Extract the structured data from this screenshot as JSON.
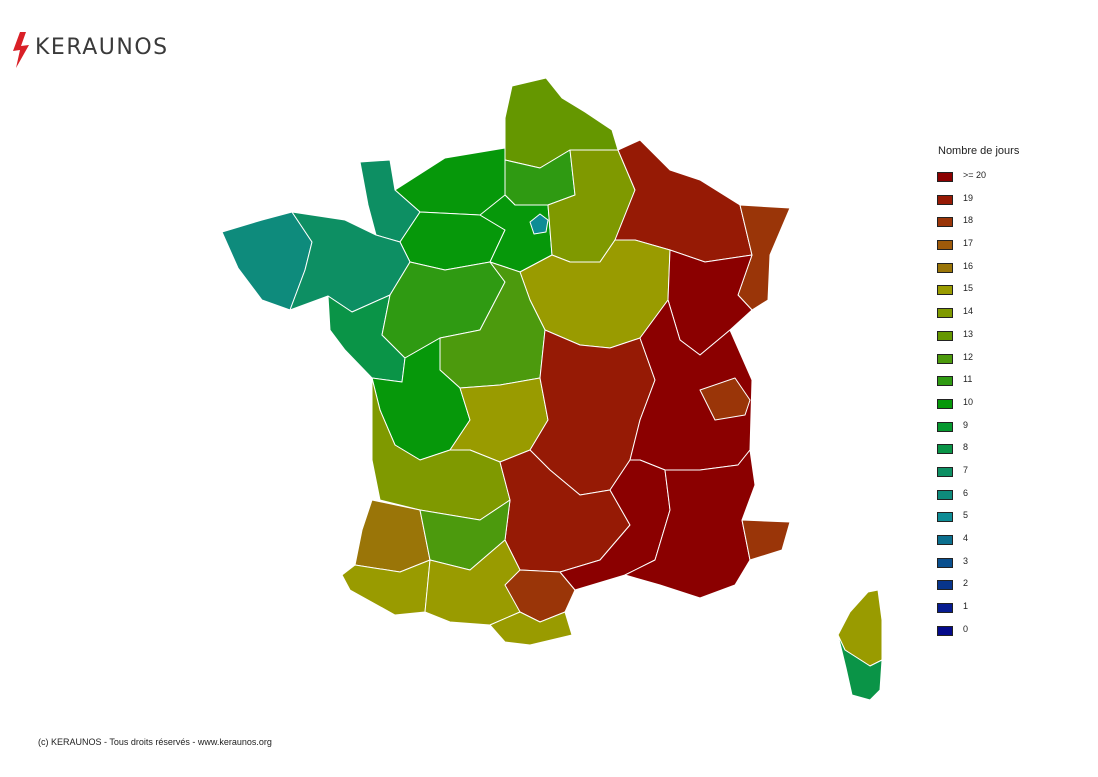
{
  "brand": {
    "name": "KERAUNOS",
    "icon": "lightning-bolt-icon",
    "accent_color": "#d92027"
  },
  "legend": {
    "title": "Nombre de jours",
    "items": [
      {
        "label": ">= 20",
        "color": "#8b0000"
      },
      {
        "label": "19",
        "color": "#961a05"
      },
      {
        "label": "18",
        "color": "#9a3508"
      },
      {
        "label": "17",
        "color": "#9e5a0a"
      },
      {
        "label": "16",
        "color": "#9a7508"
      },
      {
        "label": "15",
        "color": "#999b00"
      },
      {
        "label": "14",
        "color": "#7f9900"
      },
      {
        "label": "13",
        "color": "#659700"
      },
      {
        "label": "12",
        "color": "#4c9a0d"
      },
      {
        "label": "11",
        "color": "#2f9a12"
      },
      {
        "label": "10",
        "color": "#06980a"
      },
      {
        "label": "9",
        "color": "#06982f"
      },
      {
        "label": "8",
        "color": "#0a9447"
      },
      {
        "label": "7",
        "color": "#0d8f63"
      },
      {
        "label": "6",
        "color": "#0e8b7c"
      },
      {
        "label": "5",
        "color": "#0e8c95"
      },
      {
        "label": "4",
        "color": "#0b6f8e"
      },
      {
        "label": "3",
        "color": "#094f8e"
      },
      {
        "label": "2",
        "color": "#08358c"
      },
      {
        "label": "1",
        "color": "#071c90"
      },
      {
        "label": "0",
        "color": "#040a8a"
      }
    ]
  },
  "map_regions": [
    {
      "name": "nord-pas-de-calais",
      "color": "#659700"
    },
    {
      "name": "picardie",
      "color": "#2f9a12"
    },
    {
      "name": "haute-normandie",
      "color": "#06980a"
    },
    {
      "name": "cotentin",
      "color": "#0d8f63"
    },
    {
      "name": "basse-normandie",
      "color": "#06980a"
    },
    {
      "name": "bretagne-finistere",
      "color": "#0e8b7c"
    },
    {
      "name": "bretagne-est",
      "color": "#0d8f63"
    },
    {
      "name": "loire-atlantique",
      "color": "#0a9447"
    },
    {
      "name": "pays-de-loire",
      "color": "#2f9a12"
    },
    {
      "name": "ile-de-france",
      "color": "#06980a"
    },
    {
      "name": "paris",
      "color": "#0e8c95"
    },
    {
      "name": "champagne-ardenne",
      "color": "#7f9900"
    },
    {
      "name": "lorraine",
      "color": "#961a05"
    },
    {
      "name": "alsace",
      "color": "#9a3508"
    },
    {
      "name": "bourgogne",
      "color": "#999b00"
    },
    {
      "name": "centre",
      "color": "#4c9a0d"
    },
    {
      "name": "franche-comte",
      "color": "#8b0000"
    },
    {
      "name": "poitou-charentes",
      "color": "#06980a"
    },
    {
      "name": "limousin",
      "color": "#999b00"
    },
    {
      "name": "auvergne",
      "color": "#961a05"
    },
    {
      "name": "rhone-alpes",
      "color": "#8b0000"
    },
    {
      "name": "savoie",
      "color": "#9a3508"
    },
    {
      "name": "aquitaine",
      "color": "#7f9900"
    },
    {
      "name": "landes",
      "color": "#9a7508"
    },
    {
      "name": "pyrenees-atlantiques",
      "color": "#999b00"
    },
    {
      "name": "midi-pyrenees",
      "color": "#961a05"
    },
    {
      "name": "gers",
      "color": "#4c9a0d"
    },
    {
      "name": "haute-garonne",
      "color": "#999b00"
    },
    {
      "name": "ariege",
      "color": "#9a3508"
    },
    {
      "name": "pyrenees-orientales",
      "color": "#999b00"
    },
    {
      "name": "languedoc",
      "color": "#8b0000"
    },
    {
      "name": "provence",
      "color": "#8b0000"
    },
    {
      "name": "alpes-maritimes",
      "color": "#9a3508"
    },
    {
      "name": "haute-corse",
      "color": "#999b00"
    },
    {
      "name": "corse-du-sud",
      "color": "#0a9447"
    }
  ],
  "footer": {
    "copyright": "(c) KERAUNOS - Tous droits réservés - www.keraunos.org"
  }
}
